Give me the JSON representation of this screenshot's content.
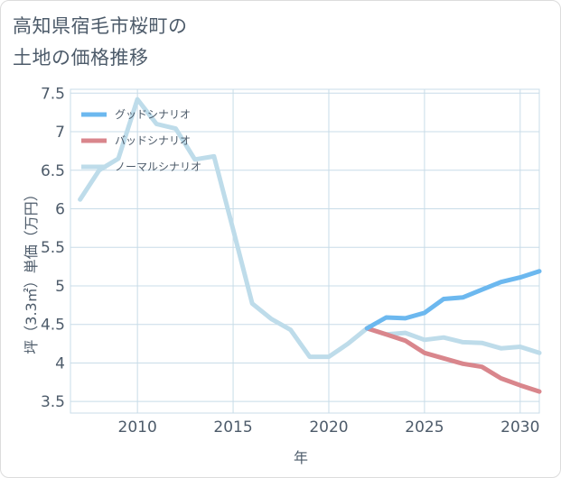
{
  "title": "高知県宿毛市桜町の\n土地の価格推移",
  "colors": {
    "good": "#6cb8ef",
    "bad": "#d9868c",
    "normal": "#bedcea",
    "grid": "#c8dce8",
    "text": "#4d5b6a"
  },
  "chart_data": {
    "type": "line",
    "xlabel": "年",
    "ylabel": "坪（3.3㎡）単価（万円）",
    "xlim": [
      2006.5,
      2031
    ],
    "ylim": [
      3.35,
      7.55
    ],
    "xticks": [
      2010,
      2015,
      2020,
      2025,
      2030
    ],
    "xtick_labels": [
      "2010",
      "2015",
      "2020",
      "2025",
      "2030"
    ],
    "yticks": [
      3.5,
      4,
      4.5,
      5,
      5.5,
      6,
      6.5,
      7,
      7.5
    ],
    "ytick_labels": [
      "3.5",
      "4",
      "4.5",
      "5",
      "5.5",
      "6",
      "6.5",
      "7",
      "7.5"
    ],
    "grid": true,
    "legend_position": "top-left",
    "series": [
      {
        "name": "グッドシナリオ",
        "color_key": "good",
        "x": [
          2022,
          2023,
          2024,
          2025,
          2026,
          2027,
          2028,
          2029,
          2030,
          2031
        ],
        "y": [
          4.45,
          4.59,
          4.58,
          4.65,
          4.83,
          4.85,
          4.95,
          5.05,
          5.11,
          5.19
        ]
      },
      {
        "name": "バッドシナリオ",
        "color_key": "bad",
        "x": [
          2022,
          2023,
          2024,
          2025,
          2026,
          2027,
          2028,
          2029,
          2030,
          2031
        ],
        "y": [
          4.45,
          4.37,
          4.29,
          4.13,
          4.06,
          3.99,
          3.95,
          3.8,
          3.71,
          3.63
        ]
      },
      {
        "name": "ノーマルシナリオ",
        "color_key": "normal",
        "x": [
          2007,
          2008,
          2009,
          2010,
          2011,
          2012,
          2013,
          2014,
          2015,
          2016,
          2017,
          2018,
          2019,
          2020,
          2021,
          2022,
          2023,
          2024,
          2025,
          2026,
          2027,
          2028,
          2029,
          2030,
          2031
        ],
        "y": [
          6.12,
          6.5,
          6.65,
          7.42,
          7.1,
          7.04,
          6.64,
          6.68,
          5.73,
          4.77,
          4.57,
          4.43,
          4.08,
          4.08,
          4.25,
          4.45,
          4.37,
          4.39,
          4.3,
          4.33,
          4.27,
          4.26,
          4.19,
          4.21,
          4.13
        ]
      }
    ]
  }
}
